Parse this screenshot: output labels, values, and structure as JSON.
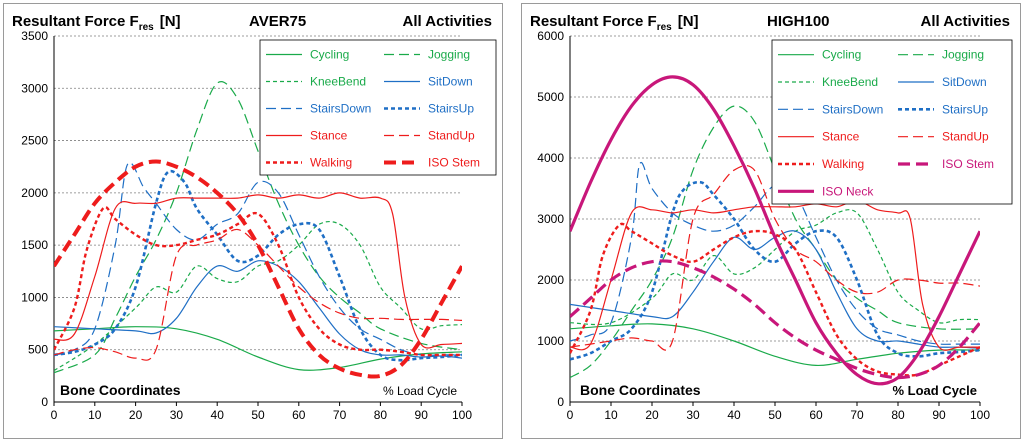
{
  "charts": [
    {
      "title": "Resultant Force F",
      "title_sub": "res",
      "title_unit": "[N]",
      "implant": "AVER75",
      "activities": "All Activities",
      "corner_left": "Bone Coordinates",
      "corner_right": "% Load Cycle"
    },
    {
      "title": "Resultant Force F",
      "title_sub": "res",
      "title_unit": "[N]",
      "implant": "HIGH100",
      "activities": "All Activities",
      "corner_left": "Bone Coordinates",
      "corner_right": "% Load Cycle"
    }
  ],
  "style": {
    "green": "#1aaa4a",
    "blue": "#1f6fc5",
    "red": "#ee1c1c",
    "magenta": "#c8177a",
    "grid": "#7f7f7f"
  },
  "chart_data": [
    {
      "type": "line",
      "title": "Resultant Force Fres [N]",
      "xlabel": "% Load Cycle",
      "ylabel": "",
      "xlim": [
        0,
        100
      ],
      "ylim": [
        0,
        3500
      ],
      "xticks": [
        0,
        10,
        20,
        30,
        40,
        50,
        60,
        70,
        80,
        90,
        100
      ],
      "yticks": [
        0,
        500,
        1000,
        1500,
        2000,
        2500,
        3000,
        3500
      ],
      "grid": "horizontal dashed",
      "legend_position": "top-right",
      "series": [
        {
          "name": "Cycling",
          "color": "green",
          "dash": "solid",
          "width": 1.2,
          "x": [
            0,
            10,
            20,
            30,
            40,
            50,
            60,
            70,
            80,
            90,
            100
          ],
          "y": [
            680,
            700,
            720,
            700,
            600,
            430,
            310,
            330,
            410,
            460,
            480
          ]
        },
        {
          "name": "Jogging",
          "color": "green",
          "dash": "long",
          "width": 1.2,
          "x": [
            0,
            10,
            15,
            20,
            25,
            30,
            35,
            40,
            45,
            50,
            55,
            60,
            65,
            70,
            75,
            80,
            90,
            100
          ],
          "y": [
            280,
            450,
            800,
            1200,
            1550,
            2000,
            2600,
            3050,
            2900,
            2400,
            1900,
            1500,
            1200,
            1000,
            850,
            700,
            560,
            500
          ]
        },
        {
          "name": "KneeBend",
          "color": "green",
          "dash": "short",
          "width": 1.2,
          "x": [
            0,
            10,
            20,
            25,
            30,
            35,
            40,
            45,
            50,
            55,
            60,
            65,
            70,
            75,
            80,
            85,
            90,
            95,
            100
          ],
          "y": [
            300,
            550,
            900,
            1100,
            1050,
            1300,
            1180,
            1150,
            1300,
            1350,
            1500,
            1700,
            1700,
            1500,
            1100,
            900,
            700,
            730,
            740
          ]
        },
        {
          "name": "SitDown",
          "color": "blue",
          "dash": "solid",
          "width": 1.2,
          "x": [
            0,
            10,
            20,
            25,
            30,
            35,
            40,
            45,
            50,
            55,
            60,
            65,
            70,
            75,
            80,
            85,
            90,
            95,
            100
          ],
          "y": [
            720,
            700,
            680,
            660,
            800,
            1100,
            1300,
            1250,
            1350,
            1300,
            1150,
            900,
            650,
            500,
            450,
            450,
            430,
            440,
            420
          ]
        },
        {
          "name": "StairsDown",
          "color": "blue",
          "dash": "long",
          "width": 1.2,
          "x": [
            0,
            5,
            10,
            15,
            18,
            22,
            25,
            30,
            35,
            40,
            45,
            50,
            55,
            60,
            65,
            70,
            75,
            80,
            85,
            90,
            95,
            100
          ],
          "y": [
            450,
            500,
            700,
            1500,
            2270,
            2050,
            1900,
            1650,
            1550,
            1700,
            1800,
            2100,
            2000,
            1600,
            1200,
            900,
            700,
            600,
            500,
            450,
            450,
            450
          ]
        },
        {
          "name": "StairsUp",
          "color": "blue",
          "dash": "short",
          "width": 2.6,
          "x": [
            0,
            5,
            10,
            15,
            20,
            25,
            28,
            32,
            35,
            40,
            45,
            50,
            55,
            60,
            65,
            70,
            75,
            80,
            85,
            90,
            95,
            100
          ],
          "y": [
            450,
            480,
            550,
            700,
            1100,
            1900,
            2200,
            2100,
            1850,
            1600,
            1350,
            1400,
            1600,
            1700,
            1650,
            1200,
            700,
            450,
            400,
            420,
            430,
            450
          ]
        },
        {
          "name": "Stance",
          "color": "red",
          "dash": "solid",
          "width": 1.2,
          "x": [
            0,
            5,
            10,
            15,
            20,
            25,
            30,
            35,
            40,
            45,
            50,
            55,
            60,
            65,
            70,
            75,
            80,
            83,
            86,
            90,
            95,
            100
          ],
          "y": [
            600,
            650,
            1200,
            1850,
            1900,
            1900,
            1950,
            1950,
            1950,
            1950,
            1980,
            1950,
            1980,
            1950,
            2000,
            1950,
            1950,
            1800,
            1000,
            550,
            550,
            560
          ]
        },
        {
          "name": "StandUp",
          "color": "red",
          "dash": "long",
          "width": 1.2,
          "x": [
            0,
            5,
            10,
            15,
            20,
            25,
            30,
            35,
            40,
            45,
            50,
            55,
            60,
            65,
            70,
            75,
            80,
            85,
            90,
            95,
            100
          ],
          "y": [
            450,
            500,
            520,
            480,
            420,
            500,
            1400,
            1500,
            1550,
            1650,
            1500,
            1300,
            1100,
            950,
            850,
            800,
            800,
            790,
            790,
            790,
            780
          ]
        },
        {
          "name": "Walking",
          "color": "red",
          "dash": "short",
          "width": 2.4,
          "x": [
            0,
            5,
            8,
            12,
            15,
            20,
            25,
            30,
            35,
            40,
            45,
            50,
            55,
            60,
            65,
            70,
            75,
            80,
            85,
            90,
            95,
            100
          ],
          "y": [
            500,
            900,
            1450,
            1850,
            1750,
            1600,
            1500,
            1500,
            1550,
            1600,
            1700,
            1800,
            1500,
            1000,
            700,
            550,
            500,
            500,
            480,
            450,
            450,
            450
          ]
        },
        {
          "name": "ISO Stem",
          "color": "red",
          "dash": "thick",
          "width": 4,
          "x": [
            0,
            5,
            10,
            15,
            20,
            25,
            30,
            35,
            40,
            45,
            50,
            55,
            60,
            65,
            70,
            75,
            80,
            85,
            90,
            95,
            100
          ],
          "y": [
            1300,
            1600,
            1900,
            2100,
            2250,
            2300,
            2250,
            2150,
            2000,
            1800,
            1500,
            1100,
            700,
            450,
            320,
            260,
            250,
            350,
            600,
            950,
            1300
          ]
        }
      ]
    },
    {
      "type": "line",
      "title": "Resultant Force Fres [N]",
      "xlabel": "% Load Cycle",
      "ylabel": "",
      "xlim": [
        0,
        100
      ],
      "ylim": [
        0,
        6000
      ],
      "xticks": [
        0,
        10,
        20,
        30,
        40,
        50,
        60,
        70,
        80,
        90,
        100
      ],
      "yticks": [
        0,
        1000,
        2000,
        3000,
        4000,
        5000,
        6000
      ],
      "grid": "horizontal dashed",
      "legend_position": "top-right",
      "series": [
        {
          "name": "Cycling",
          "color": "green",
          "dash": "solid",
          "width": 1.2,
          "x": [
            0,
            10,
            20,
            30,
            40,
            50,
            60,
            70,
            80,
            90,
            100
          ],
          "y": [
            1200,
            1250,
            1280,
            1200,
            1000,
            750,
            600,
            700,
            800,
            850,
            850
          ]
        },
        {
          "name": "Jogging",
          "color": "green",
          "dash": "long",
          "width": 1.2,
          "x": [
            0,
            5,
            10,
            15,
            20,
            25,
            30,
            35,
            40,
            45,
            50,
            55,
            60,
            65,
            70,
            75,
            80,
            90,
            100
          ],
          "y": [
            400,
            600,
            1000,
            1500,
            2000,
            2700,
            3800,
            4500,
            4850,
            4600,
            3800,
            3000,
            2500,
            2000,
            1700,
            1500,
            1300,
            1200,
            1200
          ]
        },
        {
          "name": "KneeBend",
          "color": "green",
          "dash": "short",
          "width": 1.2,
          "x": [
            0,
            10,
            20,
            25,
            30,
            35,
            40,
            45,
            50,
            55,
            60,
            65,
            70,
            75,
            80,
            85,
            90,
            95,
            100
          ],
          "y": [
            1300,
            1300,
            1700,
            2100,
            2000,
            2400,
            2100,
            2200,
            2500,
            2800,
            2900,
            3100,
            3100,
            2500,
            1800,
            1500,
            1300,
            1350,
            1350
          ]
        },
        {
          "name": "SitDown",
          "color": "blue",
          "dash": "solid",
          "width": 1.2,
          "x": [
            0,
            10,
            20,
            25,
            30,
            35,
            40,
            45,
            50,
            55,
            60,
            65,
            70,
            75,
            80,
            85,
            90,
            95,
            100
          ],
          "y": [
            1600,
            1500,
            1400,
            1400,
            1800,
            2300,
            2700,
            2500,
            2700,
            2800,
            2500,
            1800,
            1200,
            1000,
            1000,
            950,
            900,
            900,
            880
          ]
        },
        {
          "name": "StairsDown",
          "color": "blue",
          "dash": "long",
          "width": 1.2,
          "x": [
            0,
            5,
            10,
            15,
            17,
            20,
            25,
            30,
            35,
            40,
            45,
            50,
            55,
            60,
            65,
            70,
            75,
            80,
            85,
            90,
            95,
            100
          ],
          "y": [
            1000,
            1100,
            1300,
            2700,
            3900,
            3500,
            3100,
            2900,
            2800,
            2900,
            3200,
            3550,
            3400,
            2700,
            2000,
            1500,
            1200,
            1100,
            1000,
            950,
            950,
            950
          ]
        },
        {
          "name": "StairsUp",
          "color": "blue",
          "dash": "short",
          "width": 2.6,
          "x": [
            0,
            5,
            10,
            15,
            20,
            25,
            28,
            32,
            35,
            40,
            45,
            50,
            55,
            60,
            65,
            70,
            75,
            80,
            85,
            90,
            95,
            100
          ],
          "y": [
            700,
            800,
            1000,
            1200,
            1800,
            3100,
            3500,
            3600,
            3400,
            3000,
            2500,
            2300,
            2600,
            2800,
            2700,
            2000,
            1100,
            800,
            750,
            800,
            820,
            850
          ]
        },
        {
          "name": "Stance",
          "color": "red",
          "dash": "solid",
          "width": 1.2,
          "x": [
            0,
            5,
            10,
            15,
            20,
            25,
            30,
            35,
            40,
            45,
            50,
            55,
            60,
            65,
            70,
            75,
            80,
            83,
            86,
            90,
            95,
            100
          ],
          "y": [
            900,
            950,
            2000,
            3100,
            3150,
            3100,
            3150,
            3100,
            3150,
            3200,
            3200,
            3200,
            3250,
            3200,
            3300,
            3150,
            3100,
            3000,
            1600,
            900,
            900,
            900
          ]
        },
        {
          "name": "StandUp",
          "color": "red",
          "dash": "long",
          "width": 1.2,
          "x": [
            0,
            5,
            10,
            15,
            20,
            25,
            30,
            35,
            40,
            45,
            50,
            55,
            60,
            65,
            70,
            75,
            80,
            85,
            90,
            95,
            100
          ],
          "y": [
            900,
            950,
            1000,
            1050,
            1000,
            1000,
            3000,
            3400,
            3800,
            3800,
            3000,
            2500,
            2300,
            2000,
            1800,
            1800,
            2000,
            2000,
            1950,
            1950,
            1900
          ]
        },
        {
          "name": "Walking",
          "color": "red",
          "dash": "short",
          "width": 2.4,
          "x": [
            0,
            5,
            8,
            12,
            15,
            20,
            25,
            30,
            35,
            40,
            45,
            50,
            55,
            60,
            65,
            70,
            75,
            80,
            85,
            90,
            95,
            100
          ],
          "y": [
            800,
            1500,
            2400,
            2900,
            2800,
            2600,
            2400,
            2300,
            2500,
            2700,
            2800,
            2750,
            2500,
            1800,
            1100,
            700,
            500,
            450,
            450,
            600,
            750,
            900
          ]
        },
        {
          "name": "ISO Stem",
          "color": "magenta",
          "dash": "thick",
          "width": 3.2,
          "x": [
            0,
            5,
            10,
            15,
            20,
            25,
            30,
            35,
            40,
            45,
            50,
            55,
            60,
            65,
            70,
            75,
            80,
            85,
            90,
            95,
            100
          ],
          "y": [
            1400,
            1700,
            2000,
            2200,
            2300,
            2300,
            2200,
            2050,
            1850,
            1600,
            1300,
            1050,
            850,
            700,
            550,
            450,
            400,
            450,
            600,
            900,
            1300
          ]
        },
        {
          "name": "ISO Neck",
          "color": "magenta",
          "dash": "solid",
          "width": 3.2,
          "x": [
            0,
            5,
            10,
            15,
            20,
            25,
            30,
            35,
            40,
            45,
            50,
            55,
            60,
            65,
            70,
            75,
            80,
            85,
            90,
            95,
            100
          ],
          "y": [
            2800,
            3600,
            4300,
            4850,
            5200,
            5330,
            5200,
            4800,
            4200,
            3500,
            2700,
            2000,
            1300,
            800,
            450,
            300,
            400,
            800,
            1400,
            2100,
            2800
          ]
        }
      ]
    }
  ]
}
